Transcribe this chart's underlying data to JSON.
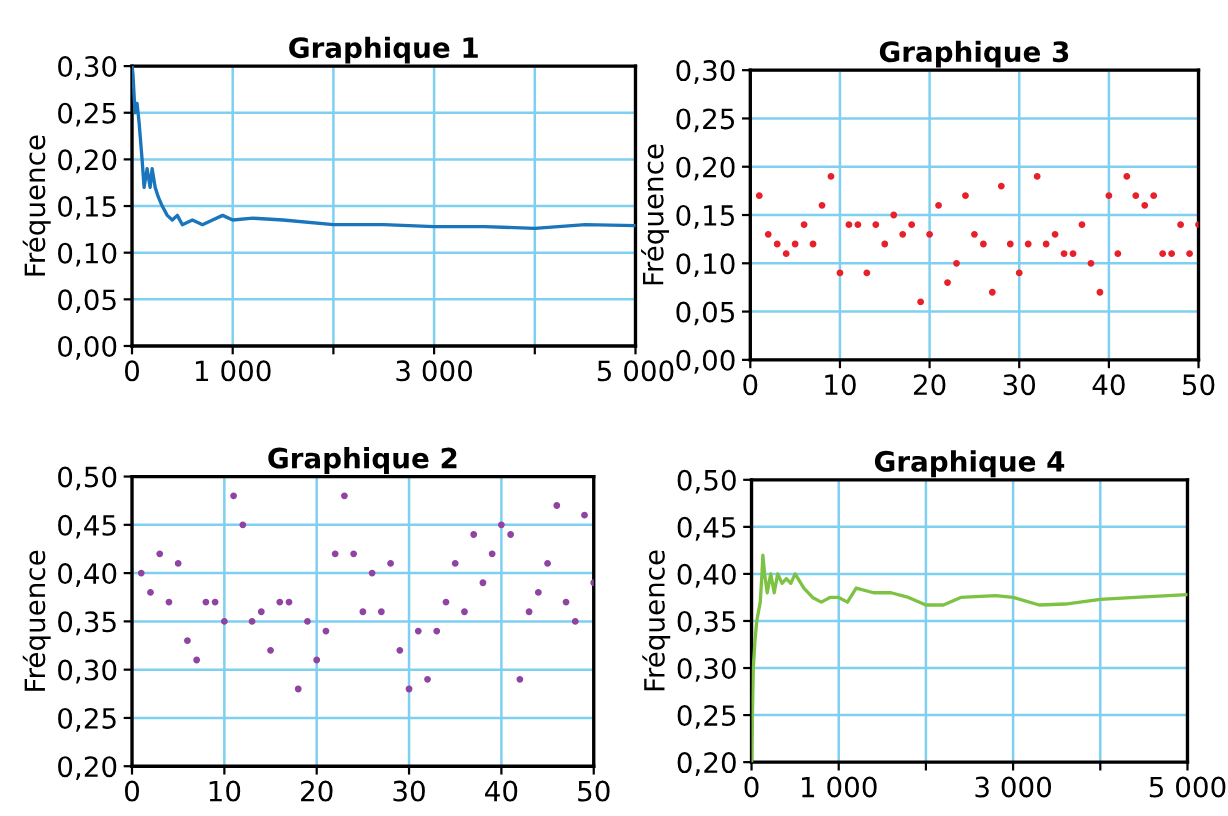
{
  "chart_data": [
    {
      "type": "line",
      "title": "Graphique 1",
      "ylabel": "Fréquence",
      "grid": true,
      "marker": "none",
      "line_style": "solid",
      "series": [
        {
          "color": "#1a75bc",
          "x": [
            1,
            10,
            30,
            50,
            70,
            100,
            120,
            150,
            180,
            200,
            230,
            260,
            300,
            350,
            400,
            450,
            500,
            600,
            700,
            800,
            900,
            1000,
            1200,
            1500,
            2000,
            2500,
            3000,
            3500,
            4000,
            4500,
            5000
          ],
          "values": [
            0.3,
            0.29,
            0.25,
            0.26,
            0.24,
            0.2,
            0.17,
            0.19,
            0.17,
            0.19,
            0.17,
            0.16,
            0.15,
            0.14,
            0.135,
            0.14,
            0.13,
            0.135,
            0.13,
            0.135,
            0.14,
            0.135,
            0.137,
            0.135,
            0.13,
            0.13,
            0.128,
            0.128,
            0.126,
            0.13,
            0.129
          ]
        }
      ],
      "xlim": [
        0,
        5000
      ],
      "xticks": [
        0,
        {
          "value": 1000,
          "label": "1 000"
        },
        {
          "value": 2000,
          "label": null
        },
        {
          "value": 3000,
          "label": "3 000"
        },
        {
          "value": 4000,
          "label": null
        },
        {
          "value": 5000,
          "label": "5 000"
        }
      ],
      "ylim": [
        0,
        0.3
      ],
      "yticks": [
        {
          "value": 0,
          "label": "0,00"
        },
        {
          "value": 0.05,
          "label": "0,05"
        },
        {
          "value": 0.1,
          "label": "0,10"
        },
        {
          "value": 0.15,
          "label": "0,15"
        },
        {
          "value": 0.2,
          "label": "0,20"
        },
        {
          "value": 0.25,
          "label": "0,25"
        },
        {
          "value": 0.3,
          "label": "0,30"
        }
      ]
    },
    {
      "type": "scatter",
      "title": "Graphique 3",
      "ylabel": "Fréquence",
      "grid": true,
      "marker": "circle",
      "series": [
        {
          "color": "#e8202a",
          "x": [
            1,
            2,
            3,
            4,
            5,
            6,
            7,
            8,
            9,
            10,
            11,
            12,
            13,
            14,
            15,
            16,
            17,
            18,
            19,
            20,
            21,
            22,
            23,
            24,
            25,
            26,
            27,
            28,
            29,
            30,
            31,
            32,
            33,
            34,
            35,
            36,
            37,
            38,
            39,
            40,
            41,
            42,
            43,
            44,
            45,
            46,
            47,
            48,
            49,
            50
          ],
          "values": [
            0.17,
            0.13,
            0.12,
            0.11,
            0.12,
            0.14,
            0.12,
            0.16,
            0.19,
            0.09,
            0.14,
            0.14,
            0.09,
            0.14,
            0.12,
            0.15,
            0.13,
            0.14,
            0.06,
            0.13,
            0.16,
            0.08,
            0.1,
            0.17,
            0.13,
            0.12,
            0.07,
            0.18,
            0.12,
            0.09,
            0.12,
            0.19,
            0.12,
            0.13,
            0.11,
            0.11,
            0.14,
            0.1,
            0.07,
            0.17,
            0.11,
            0.19,
            0.17,
            0.16,
            0.17,
            0.11,
            0.11,
            0.14,
            0.11,
            0.14
          ]
        }
      ],
      "xlim": [
        0,
        50
      ],
      "xticks": [
        0,
        10,
        20,
        30,
        40,
        50
      ],
      "ylim": [
        0,
        0.3
      ],
      "yticks": [
        {
          "value": 0,
          "label": "0,00"
        },
        {
          "value": 0.05,
          "label": "0,05"
        },
        {
          "value": 0.1,
          "label": "0,10"
        },
        {
          "value": 0.15,
          "label": "0,15"
        },
        {
          "value": 0.2,
          "label": "0,20"
        },
        {
          "value": 0.25,
          "label": "0,25"
        },
        {
          "value": 0.3,
          "label": "0,30"
        }
      ]
    },
    {
      "type": "scatter",
      "title": "Graphique 2",
      "ylabel": "Fréquence",
      "grid": true,
      "marker": "circle",
      "series": [
        {
          "color": "#8e44a0",
          "x": [
            1,
            2,
            3,
            4,
            5,
            6,
            7,
            8,
            9,
            10,
            11,
            12,
            13,
            14,
            15,
            16,
            17,
            18,
            19,
            20,
            21,
            22,
            23,
            24,
            25,
            26,
            27,
            28,
            29,
            30,
            31,
            32,
            33,
            34,
            35,
            36,
            37,
            38,
            39,
            40,
            41,
            42,
            43,
            44,
            45,
            46,
            47,
            48,
            49,
            50
          ],
          "values": [
            0.4,
            0.38,
            0.42,
            0.37,
            0.41,
            0.33,
            0.31,
            0.37,
            0.37,
            0.35,
            0.48,
            0.45,
            0.35,
            0.36,
            0.32,
            0.37,
            0.37,
            0.28,
            0.35,
            0.31,
            0.34,
            0.42,
            0.48,
            0.42,
            0.36,
            0.4,
            0.36,
            0.41,
            0.32,
            0.28,
            0.34,
            0.29,
            0.34,
            0.37,
            0.41,
            0.36,
            0.44,
            0.39,
            0.42,
            0.45,
            0.44,
            0.29,
            0.36,
            0.38,
            0.41,
            0.47,
            0.37,
            0.35,
            0.46,
            0.39
          ]
        }
      ],
      "xlim": [
        0,
        50
      ],
      "xticks": [
        0,
        10,
        20,
        30,
        40,
        50
      ],
      "ylim": [
        0.2,
        0.5
      ],
      "yticks": [
        {
          "value": 0.2,
          "label": "0,20"
        },
        {
          "value": 0.25,
          "label": "0,25"
        },
        {
          "value": 0.3,
          "label": "0,30"
        },
        {
          "value": 0.35,
          "label": "0,35"
        },
        {
          "value": 0.4,
          "label": "0,40"
        },
        {
          "value": 0.45,
          "label": "0,45"
        },
        {
          "value": 0.5,
          "label": "0,50"
        }
      ]
    },
    {
      "type": "line",
      "title": "Graphique 4",
      "ylabel": "Fréquence",
      "grid": true,
      "marker": "none",
      "line_style": "solid",
      "series": [
        {
          "color": "#7dc242",
          "x": [
            1,
            10,
            20,
            40,
            60,
            80,
            100,
            120,
            130,
            150,
            180,
            220,
            260,
            300,
            350,
            400,
            450,
            500,
            600,
            700,
            800,
            900,
            1000,
            1100,
            1200,
            1400,
            1600,
            1800,
            2000,
            2200,
            2400,
            2800,
            3000,
            3300,
            3600,
            4000,
            4400,
            5000
          ],
          "values": [
            0.2,
            0.25,
            0.3,
            0.33,
            0.35,
            0.36,
            0.37,
            0.4,
            0.42,
            0.4,
            0.38,
            0.4,
            0.38,
            0.4,
            0.39,
            0.395,
            0.39,
            0.4,
            0.385,
            0.375,
            0.37,
            0.375,
            0.375,
            0.37,
            0.385,
            0.38,
            0.38,
            0.375,
            0.367,
            0.367,
            0.375,
            0.377,
            0.375,
            0.367,
            0.368,
            0.373,
            0.375,
            0.378
          ]
        }
      ],
      "xlim": [
        0,
        5000
      ],
      "xticks": [
        0,
        {
          "value": 1000,
          "label": "1 000"
        },
        {
          "value": 2000,
          "label": null
        },
        {
          "value": 3000,
          "label": "3 000"
        },
        {
          "value": 4000,
          "label": null
        },
        {
          "value": 5000,
          "label": "5 000"
        }
      ],
      "ylim": [
        0.2,
        0.5
      ],
      "yticks": [
        {
          "value": 0.2,
          "label": "0,20"
        },
        {
          "value": 0.25,
          "label": "0,25"
        },
        {
          "value": 0.3,
          "label": "0,30"
        },
        {
          "value": 0.35,
          "label": "0,35"
        },
        {
          "value": 0.4,
          "label": "0,40"
        },
        {
          "value": 0.45,
          "label": "0,45"
        },
        {
          "value": 0.5,
          "label": "0,50"
        }
      ]
    }
  ]
}
